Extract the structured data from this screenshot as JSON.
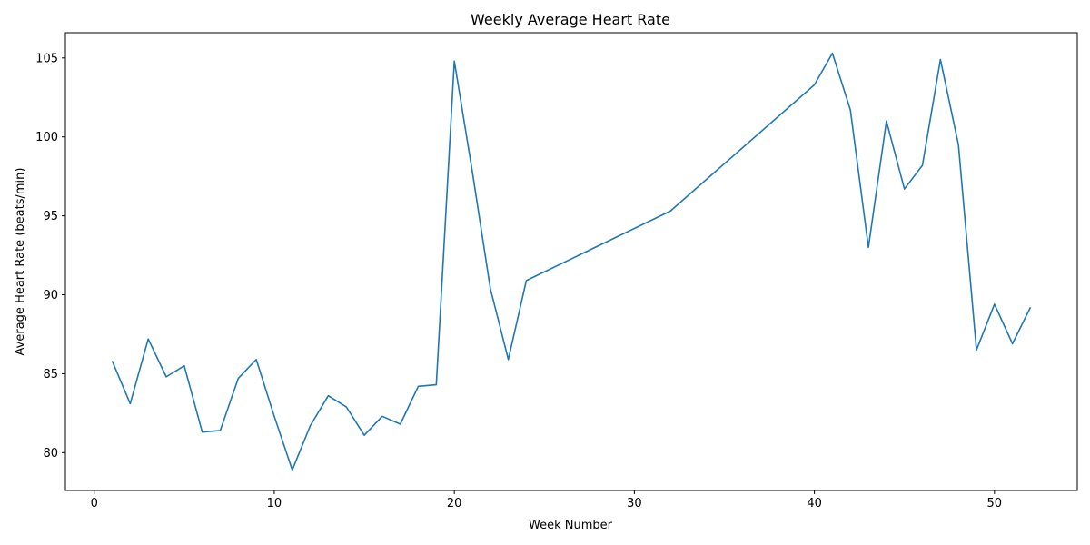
{
  "chart_data": {
    "type": "line",
    "title": "Weekly Average Heart Rate",
    "xlabel": "Week Number",
    "ylabel": "Average Heart Rate (beats/min)",
    "xlim": [
      -1.6,
      54.6
    ],
    "ylim": [
      77.6,
      106.6
    ],
    "xticks": [
      0,
      10,
      20,
      30,
      40,
      50
    ],
    "yticks": [
      80,
      85,
      90,
      95,
      100,
      105
    ],
    "grid": false,
    "line_color": "#1f77b4",
    "series": [
      {
        "x": [
          1,
          2,
          3,
          4,
          5,
          6,
          7,
          8,
          9,
          10,
          11,
          12,
          13,
          14,
          15,
          16,
          17,
          18,
          19,
          20,
          21,
          22,
          23,
          24,
          32,
          40,
          41,
          42,
          43,
          44,
          45,
          46,
          47,
          48,
          49,
          50,
          51,
          52
        ],
        "values": [
          85.8,
          83.1,
          87.2,
          84.8,
          85.5,
          81.3,
          81.4,
          84.7,
          85.9,
          82.3,
          78.9,
          81.7,
          83.6,
          82.9,
          81.1,
          82.3,
          81.8,
          84.2,
          84.3,
          104.8,
          97.8,
          90.4,
          85.9,
          90.9,
          95.3,
          103.3,
          105.3,
          101.7,
          93.0,
          101.0,
          96.7,
          98.2,
          104.9,
          99.5,
          86.5,
          89.4,
          86.9,
          89.2
        ]
      }
    ]
  }
}
